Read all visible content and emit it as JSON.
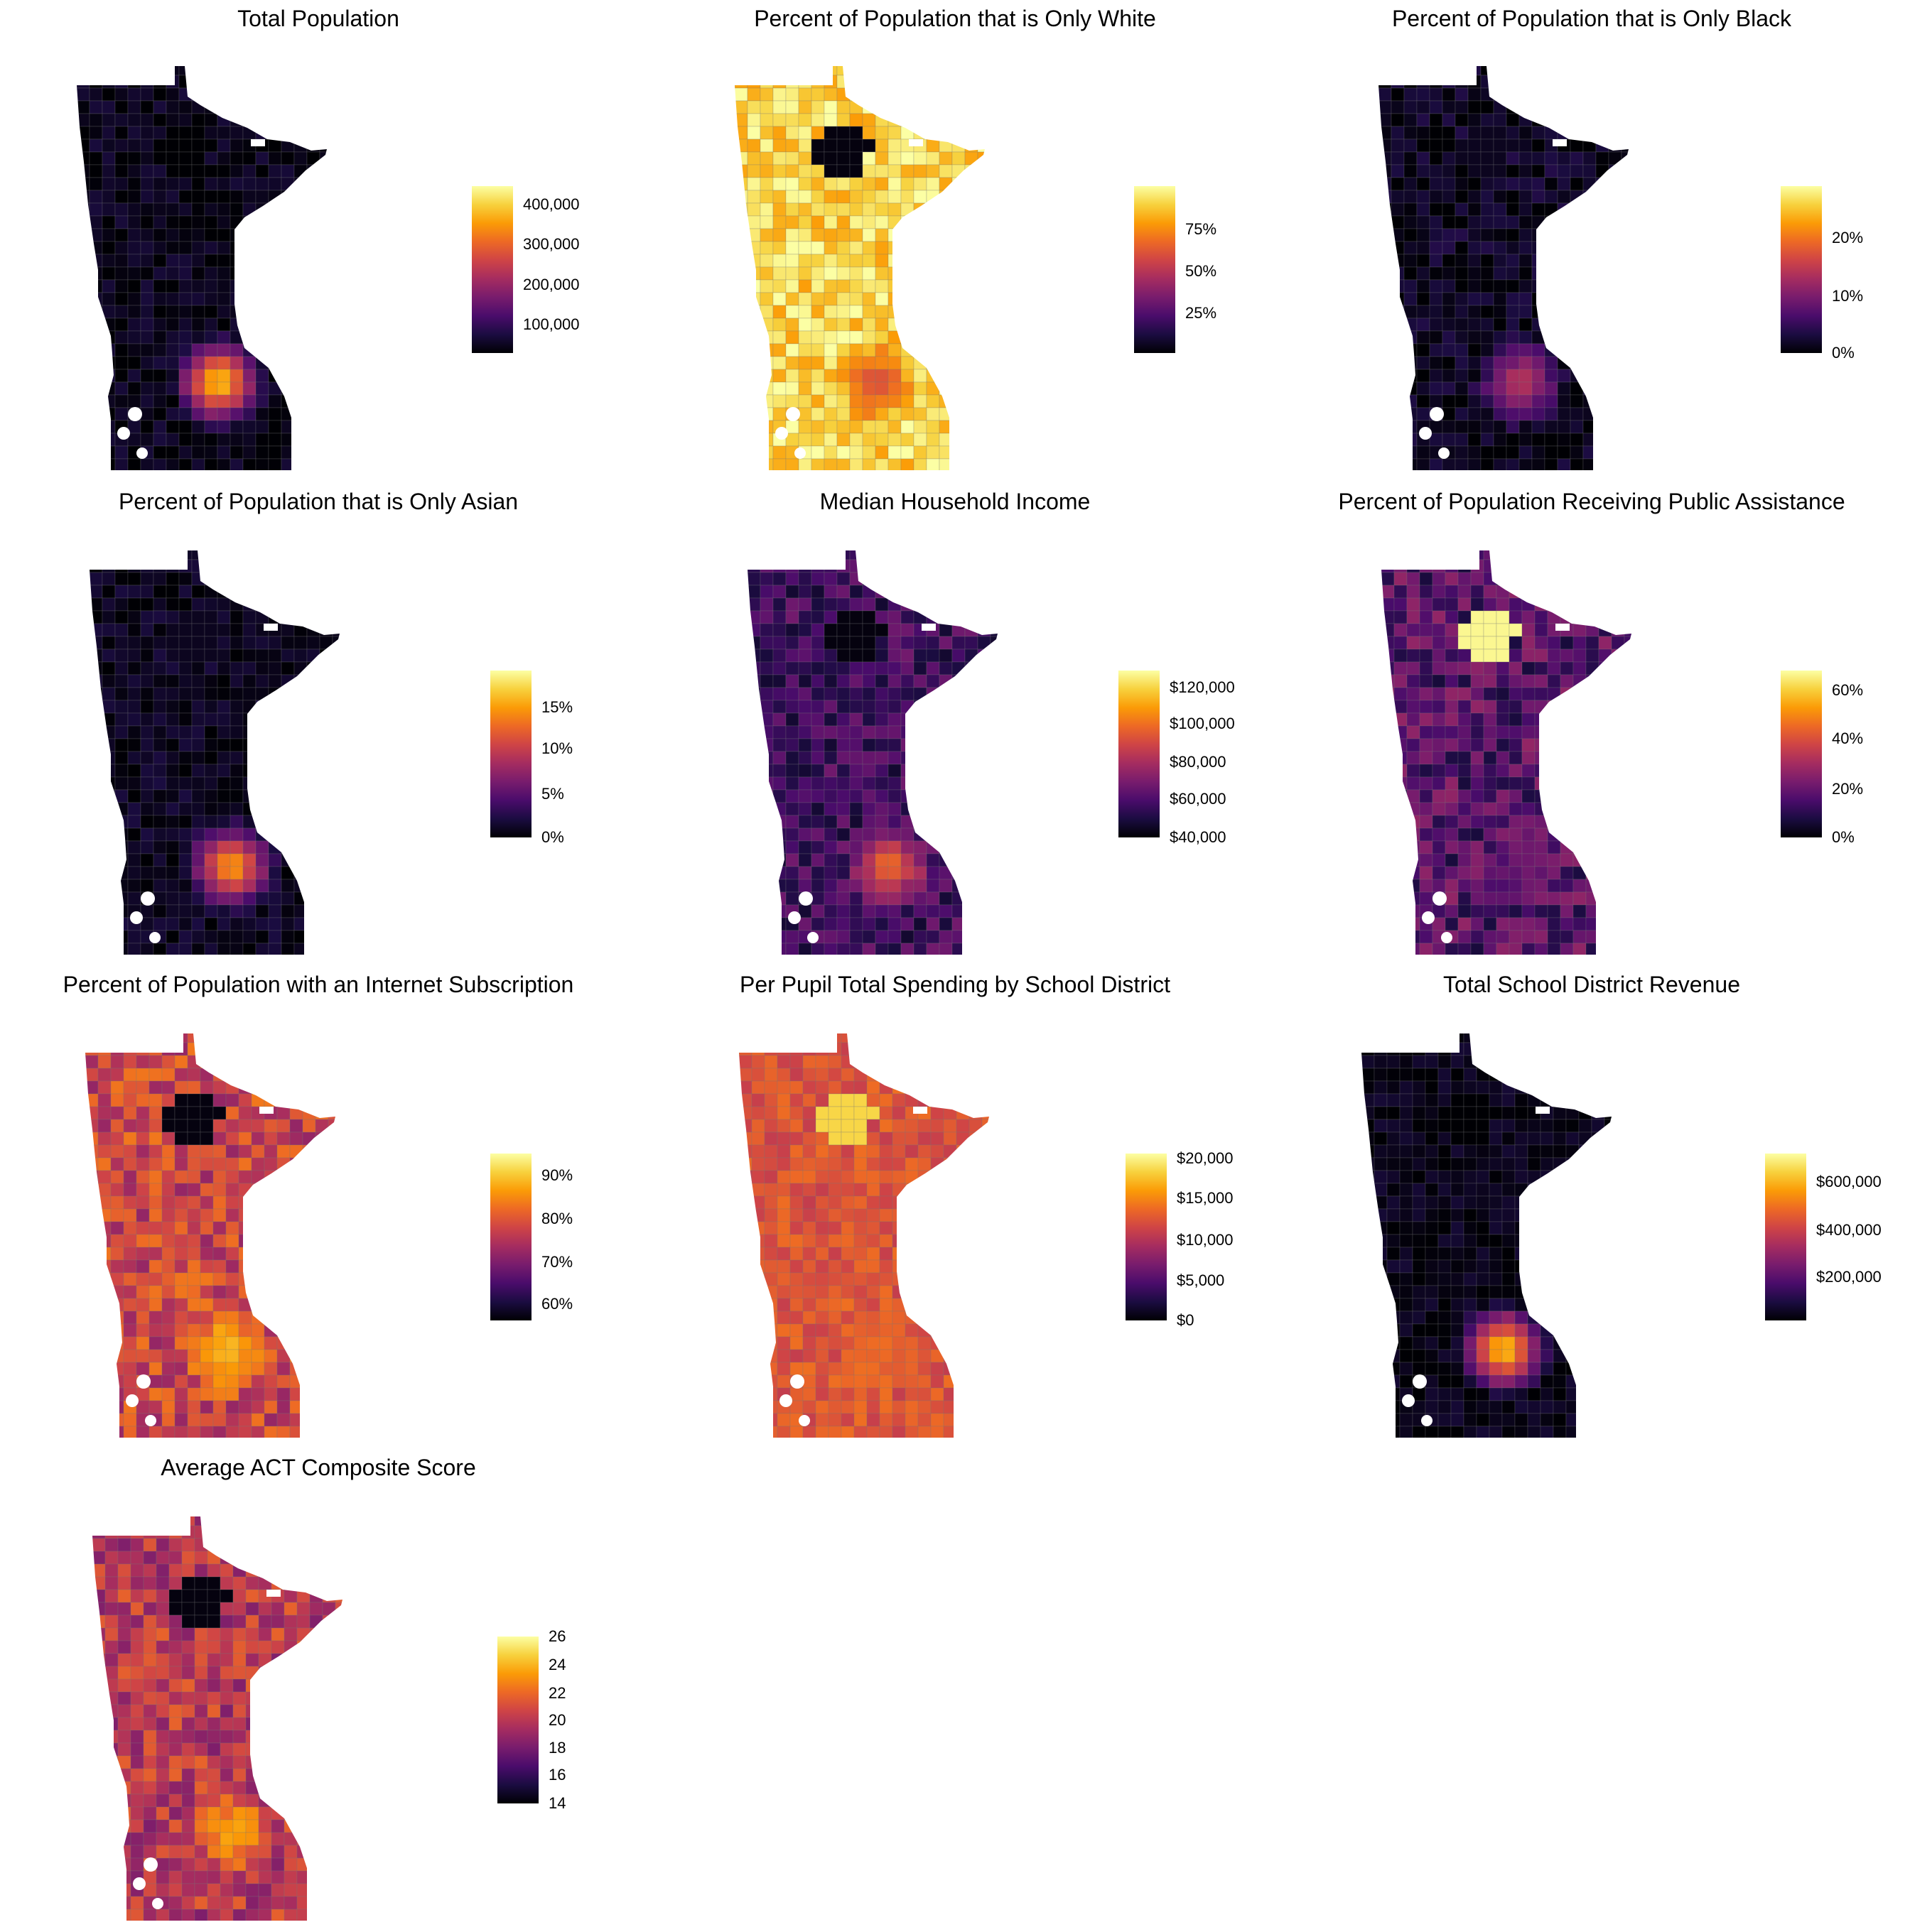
{
  "colorscale": {
    "name": "inferno",
    "stops": [
      "#000004",
      "#1b0c41",
      "#4a0c6b",
      "#781c6d",
      "#a52c60",
      "#cf4446",
      "#ed6925",
      "#fb9b06",
      "#f7d13d",
      "#fcffa4"
    ]
  },
  "panels": [
    {
      "id": "total-population",
      "title": "Total Population",
      "legend": {
        "labels": [
          "400,000",
          "300,000",
          "200,000",
          "100,000"
        ],
        "fractions": [
          0.89,
          0.65,
          0.41,
          0.17
        ]
      },
      "pattern": {
        "base": 0.04,
        "metro": 0.95,
        "north_blob": 0.0,
        "noise": 0.06
      }
    },
    {
      "id": "percent-white",
      "title": "Percent of Population that is Only White",
      "legend": {
        "labels": [
          "75%",
          "50%",
          "25%"
        ],
        "fractions": [
          0.74,
          0.49,
          0.24
        ]
      },
      "pattern": {
        "base": 0.9,
        "metro": 0.55,
        "north_blob": 0.02,
        "noise": 0.12
      }
    },
    {
      "id": "percent-black",
      "title": "Percent of Population that is Only Black",
      "legend": {
        "labels": [
          "20%",
          "10%",
          "0%"
        ],
        "fractions": [
          0.69,
          0.34,
          0.0
        ]
      },
      "pattern": {
        "base": 0.05,
        "metro": 0.55,
        "north_blob": 0.05,
        "noise": 0.08
      }
    },
    {
      "id": "percent-asian",
      "title": "Percent of Population that is Only Asian",
      "legend": {
        "labels": [
          "15%",
          "10%",
          "5%",
          "0%"
        ],
        "fractions": [
          0.78,
          0.53,
          0.26,
          0.0
        ]
      },
      "pattern": {
        "base": 0.05,
        "metro": 0.85,
        "north_blob": 0.05,
        "noise": 0.06
      }
    },
    {
      "id": "median-income",
      "title": "Median Household Income",
      "legend": {
        "labels": [
          "$120,000",
          "$100,000",
          "$80,000",
          "$60,000",
          "$40,000"
        ],
        "fractions": [
          0.9,
          0.68,
          0.45,
          0.23,
          0.0
        ]
      },
      "pattern": {
        "base": 0.2,
        "metro": 0.72,
        "north_blob": 0.02,
        "noise": 0.12
      }
    },
    {
      "id": "public-assistance",
      "title": "Percent of Population Receiving Public Assistance",
      "legend": {
        "labels": [
          "60%",
          "40%",
          "20%",
          "0%"
        ],
        "fractions": [
          0.88,
          0.59,
          0.29,
          0.0
        ]
      },
      "pattern": {
        "base": 0.25,
        "metro": 0.3,
        "north_blob": 0.98,
        "noise": 0.15
      }
    },
    {
      "id": "internet-subscription",
      "title": "Percent of Population with an Internet Subscription",
      "legend": {
        "labels": [
          "90%",
          "80%",
          "70%",
          "60%"
        ],
        "fractions": [
          0.87,
          0.61,
          0.35,
          0.1
        ]
      },
      "pattern": {
        "base": 0.55,
        "metro": 0.88,
        "north_blob": 0.02,
        "noise": 0.15
      }
    },
    {
      "id": "per-pupil-spending",
      "title": "Per Pupil Total Spending by School District",
      "legend": {
        "labels": [
          "$20,000",
          "$15,000",
          "$10,000",
          "$5,000",
          "$0"
        ],
        "fractions": [
          0.97,
          0.73,
          0.48,
          0.24,
          0.0
        ]
      },
      "pattern": {
        "base": 0.6,
        "metro": 0.68,
        "north_blob": 0.9,
        "noise": 0.08
      }
    },
    {
      "id": "district-revenue",
      "title": "Total School District Revenue",
      "legend": {
        "labels": [
          "$600,000",
          "$400,000",
          "$200,000"
        ],
        "fractions": [
          0.83,
          0.54,
          0.26
        ]
      },
      "pattern": {
        "base": 0.04,
        "metro": 0.95,
        "north_blob": 0.0,
        "noise": 0.05
      }
    },
    {
      "id": "act-score",
      "title": "Average ACT Composite Score",
      "legend": {
        "labels": [
          "26",
          "24",
          "22",
          "20",
          "18",
          "16",
          "14"
        ],
        "fractions": [
          1.0,
          0.83,
          0.66,
          0.5,
          0.33,
          0.17,
          0.0
        ]
      },
      "pattern": {
        "base": 0.5,
        "metro": 0.85,
        "north_blob": 0.02,
        "noise": 0.15
      }
    }
  ]
}
